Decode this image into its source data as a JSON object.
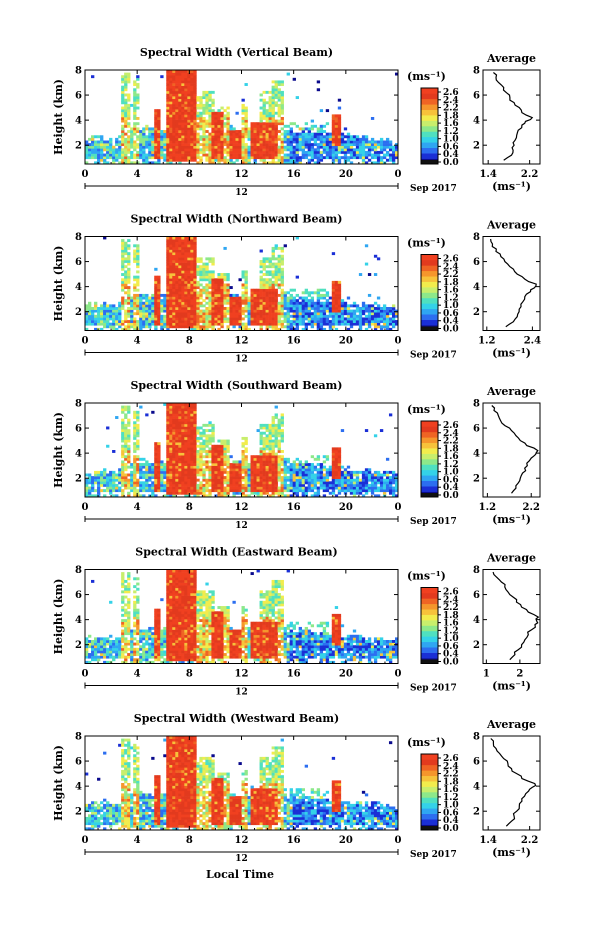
{
  "figure": {
    "date_label": "Sep 2017",
    "xlabel": "Local Time",
    "colorbar_unit": "(ms⁻¹)",
    "colorbar_ticks": [
      "2.6",
      "2.4",
      "2.2",
      "1.8",
      "1.6",
      "1.2",
      "1.0",
      "0.6",
      "0.4",
      "0.0"
    ],
    "avg_title": "Average",
    "avg_unit": "(ms⁻¹)",
    "colorscale": [
      "#0a0a8c",
      "#1a2fd6",
      "#2c6ef0",
      "#2fa6f2",
      "#34d2e8",
      "#4fe0c0",
      "#8de88a",
      "#c8ee6c",
      "#f2ec4c",
      "#f7c23a",
      "#f5962c",
      "#ef6424",
      "#e23a1e",
      "#f04020"
    ]
  },
  "chart_data": [
    {
      "type": "heatmap",
      "title": "Spectral Width (Vertical Beam)",
      "ylabel": "Height (km)",
      "x_ticks": [
        "0",
        "4",
        "8",
        "12",
        "16",
        "20",
        "0"
      ],
      "x_sub_label": "12",
      "y_ticks": [
        "8",
        "6",
        "4",
        "2"
      ],
      "ylim": [
        0.5,
        8
      ],
      "avg_profile": {
        "x_ticks": [
          "1.4",
          "2.2"
        ],
        "xlim": [
          1.3,
          2.4
        ],
        "heights": [
          0.8,
          1.2,
          1.6,
          2.0,
          2.4,
          2.8,
          3.2,
          3.6,
          3.9,
          4.2,
          4.6,
          5.0,
          5.4,
          5.8,
          6.2,
          6.6,
          7.0,
          7.4,
          7.8
        ],
        "values": [
          1.7,
          1.85,
          1.88,
          1.9,
          1.92,
          1.95,
          1.98,
          2.05,
          2.12,
          2.25,
          2.05,
          2.0,
          1.9,
          1.82,
          1.75,
          1.7,
          1.6,
          1.55,
          1.5
        ]
      }
    },
    {
      "type": "heatmap",
      "title": "Spectral Width (Northward Beam)",
      "ylabel": "Height (km)",
      "x_ticks": [
        "0",
        "4",
        "8",
        "12",
        "16",
        "20",
        "0"
      ],
      "x_sub_label": "12",
      "y_ticks": [
        "8",
        "6",
        "4",
        "2"
      ],
      "ylim": [
        0.5,
        8
      ],
      "avg_profile": {
        "x_ticks": [
          "1.2",
          "2.4"
        ],
        "xlim": [
          1.1,
          2.6
        ],
        "heights": [
          0.8,
          1.2,
          1.6,
          2.0,
          2.4,
          2.8,
          3.2,
          3.6,
          3.9,
          4.2,
          4.6,
          5.0,
          5.4,
          5.8,
          6.2,
          6.6,
          7.0,
          7.4,
          7.8
        ],
        "values": [
          1.7,
          1.9,
          2.0,
          2.05,
          2.1,
          2.15,
          2.2,
          2.35,
          2.45,
          2.5,
          2.2,
          2.0,
          1.9,
          1.75,
          1.65,
          1.55,
          1.45,
          1.35,
          1.3
        ]
      }
    },
    {
      "type": "heatmap",
      "title": "Spectral Width (Southward Beam)",
      "ylabel": "Height (km)",
      "x_ticks": [
        "0",
        "4",
        "8",
        "12",
        "16",
        "20",
        "0"
      ],
      "x_sub_label": "12",
      "y_ticks": [
        "8",
        "6",
        "4",
        "2"
      ],
      "ylim": [
        0.5,
        8
      ],
      "avg_profile": {
        "x_ticks": [
          "1.2",
          "2.2"
        ],
        "xlim": [
          1.1,
          2.4
        ],
        "heights": [
          0.8,
          1.2,
          1.6,
          2.0,
          2.4,
          2.8,
          3.2,
          3.6,
          3.9,
          4.2,
          4.6,
          5.0,
          5.4,
          5.8,
          6.2,
          6.6,
          7.0,
          7.4,
          7.8
        ],
        "values": [
          1.75,
          1.85,
          1.9,
          1.95,
          2.0,
          2.05,
          2.1,
          2.2,
          2.3,
          2.35,
          2.1,
          1.95,
          1.85,
          1.75,
          1.6,
          1.5,
          1.45,
          1.35,
          1.3
        ]
      }
    },
    {
      "type": "heatmap",
      "title": "Spectral Width (Eastward Beam)",
      "ylabel": "Height (km)",
      "x_ticks": [
        "0",
        "4",
        "8",
        "12",
        "16",
        "20",
        "0"
      ],
      "x_sub_label": "12",
      "y_ticks": [
        "8",
        "6",
        "4",
        "2"
      ],
      "ylim": [
        0.5,
        8
      ],
      "avg_profile": {
        "x_ticks": [
          "1",
          "2"
        ],
        "xlim": [
          0.9,
          2.6
        ],
        "heights": [
          0.8,
          1.2,
          1.6,
          2.0,
          2.4,
          2.8,
          3.2,
          3.6,
          3.9,
          4.2,
          4.6,
          5.0,
          5.4,
          5.8,
          6.2,
          6.6,
          7.0,
          7.4,
          7.8
        ],
        "values": [
          1.7,
          1.85,
          1.95,
          2.05,
          2.15,
          2.25,
          2.35,
          2.45,
          2.5,
          2.55,
          2.25,
          2.05,
          1.9,
          1.8,
          1.65,
          1.55,
          1.45,
          1.3,
          1.2
        ]
      }
    },
    {
      "type": "heatmap",
      "title": "Spectral Width (Westward Beam)",
      "ylabel": "Height (km)",
      "x_ticks": [
        "0",
        "4",
        "8",
        "12",
        "16",
        "20",
        "0"
      ],
      "x_sub_label": "12",
      "y_ticks": [
        "8",
        "6",
        "4",
        "2"
      ],
      "ylim": [
        0.5,
        8
      ],
      "avg_profile": {
        "x_ticks": [
          "1.4",
          "2.2"
        ],
        "xlim": [
          1.3,
          2.4
        ],
        "heights": [
          0.8,
          1.2,
          1.6,
          2.0,
          2.4,
          2.8,
          3.2,
          3.6,
          3.9,
          4.2,
          4.6,
          5.0,
          5.4,
          5.8,
          6.2,
          6.6,
          7.0,
          7.4,
          7.8
        ],
        "values": [
          1.75,
          1.85,
          1.9,
          1.95,
          2.0,
          2.05,
          2.1,
          2.18,
          2.25,
          2.3,
          2.05,
          1.95,
          1.85,
          1.78,
          1.7,
          1.62,
          1.55,
          1.5,
          1.45
        ]
      }
    }
  ]
}
